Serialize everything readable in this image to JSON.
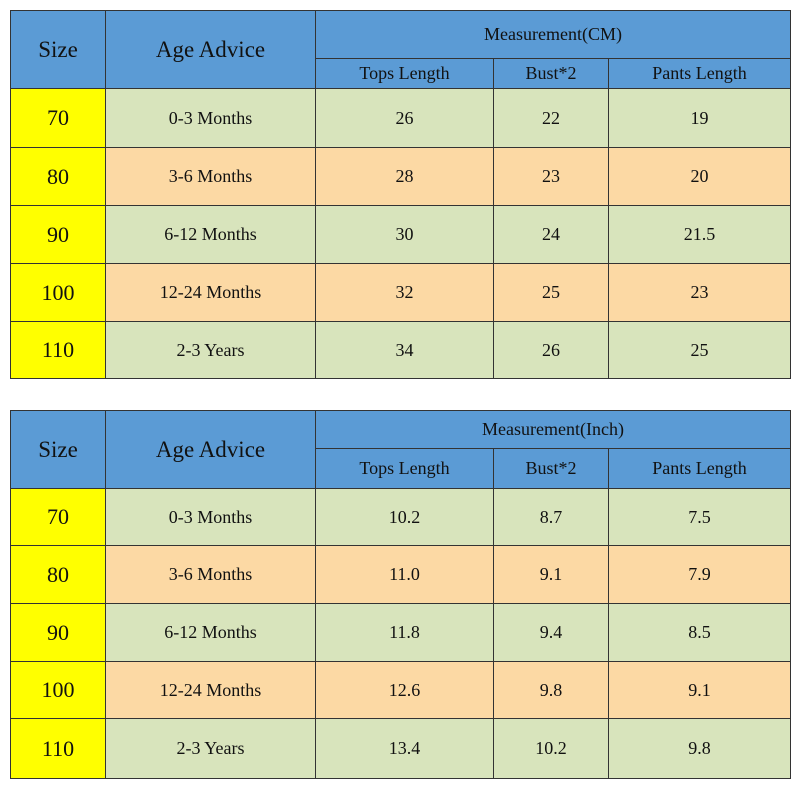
{
  "tables": [
    {
      "header": {
        "size": "Size",
        "age": "Age Advice",
        "measurement": "Measurement(CM)",
        "columns": [
          "Tops Length",
          "Bust*2",
          "Pants Length"
        ]
      },
      "rows": [
        [
          "70",
          "0-3 Months",
          "26",
          "22",
          "19"
        ],
        [
          "80",
          "3-6 Months",
          "28",
          "23",
          "20"
        ],
        [
          "90",
          "6-12 Months",
          "30",
          "24",
          "21.5"
        ],
        [
          "100",
          "12-24 Months",
          "32",
          "25",
          "23"
        ],
        [
          "110",
          "2-3 Years",
          "34",
          "26",
          "25"
        ]
      ]
    },
    {
      "header": {
        "size": "Size",
        "age": "Age Advice",
        "measurement": "Measurement(Inch)",
        "columns": [
          "Tops Length",
          "Bust*2",
          "Pants Length"
        ]
      },
      "rows": [
        [
          "70",
          "0-3 Months",
          "10.2",
          "8.7",
          "7.5"
        ],
        [
          "80",
          "3-6 Months",
          "11.0",
          "9.1",
          "7.9"
        ],
        [
          "90",
          "6-12 Months",
          "11.8",
          "9.4",
          "8.5"
        ],
        [
          "100",
          "12-24 Months",
          "12.6",
          "9.8",
          "9.1"
        ],
        [
          "110",
          "2-3 Years",
          "13.4",
          "10.2",
          "9.8"
        ]
      ]
    }
  ]
}
